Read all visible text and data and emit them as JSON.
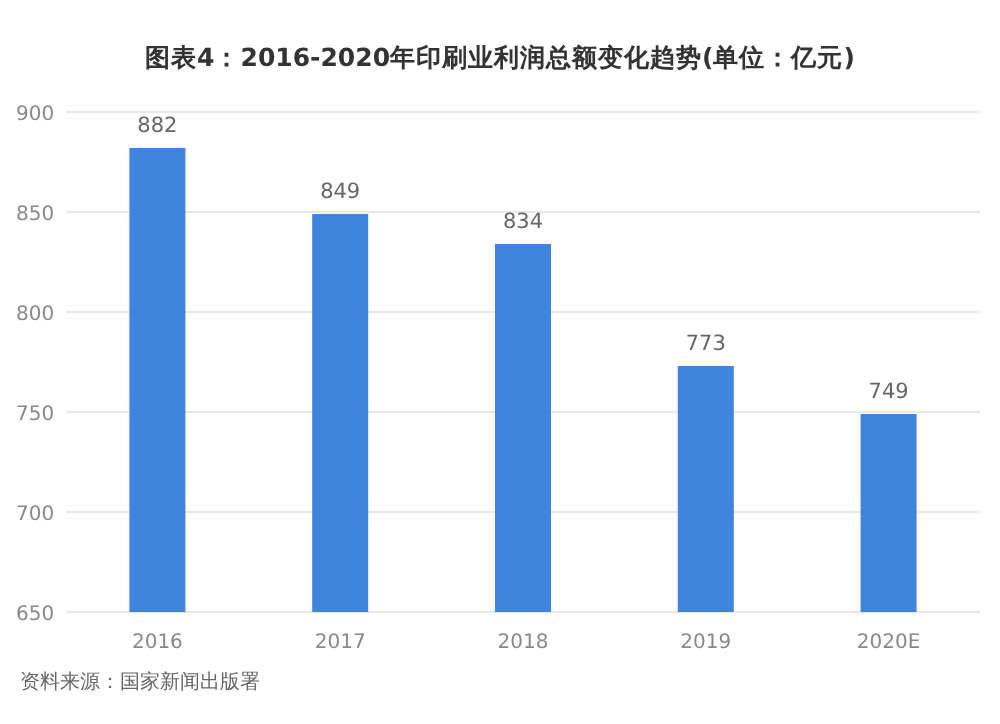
{
  "chart_data": {
    "type": "bar",
    "title": "图表4：2016-2020年印刷业利润总额变化趋势(单位：亿元)",
    "categories": [
      "2016",
      "2017",
      "2018",
      "2019",
      "2020E"
    ],
    "values": [
      882,
      849,
      834,
      773,
      749
    ],
    "color": "#3f85dd",
    "ylim": [
      650,
      900
    ],
    "yticks": [
      650,
      700,
      750,
      800,
      850,
      900
    ],
    "grid": "y",
    "data_labels": true,
    "annotations": [
      "资料来源：国家新闻出版署"
    ]
  }
}
